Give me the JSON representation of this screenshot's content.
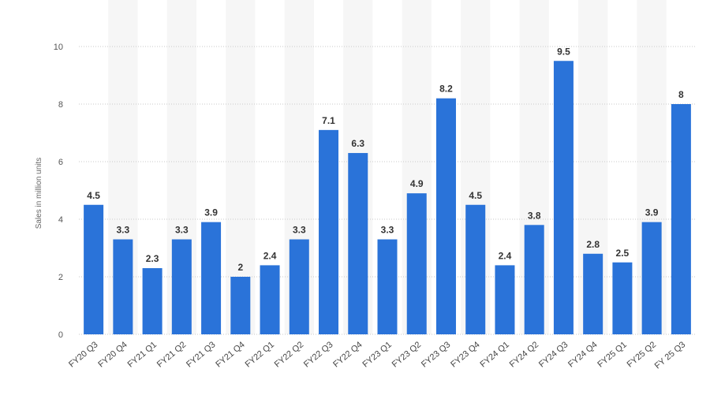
{
  "chart_data": {
    "type": "bar",
    "title": "",
    "xlabel": "",
    "ylabel": "Sales in million units",
    "ylim": [
      0,
      10
    ],
    "yticks": [
      0,
      2,
      4,
      6,
      8,
      10
    ],
    "grid": true,
    "categories": [
      "FY20 Q3",
      "FY20 Q4",
      "FY21 Q1",
      "FY21 Q2",
      "FY21 Q3",
      "FY21 Q4",
      "FY22 Q1",
      "FY22 Q2",
      "FY22 Q3",
      "FY22 Q4",
      "FY23 Q1",
      "FY23 Q2",
      "FY23 Q3",
      "FY23 Q4",
      "FY24 Q1",
      "FY24 Q2",
      "FY24 Q3",
      "FY24 Q4",
      "FY25 Q1",
      "FY25 Q2",
      "FY 25 Q3"
    ],
    "values": [
      4.5,
      3.3,
      2.3,
      3.3,
      3.9,
      2,
      2.4,
      3.3,
      7.1,
      6.3,
      3.3,
      4.9,
      8.2,
      4.5,
      2.4,
      3.8,
      9.5,
      2.8,
      2.5,
      3.9,
      8
    ],
    "colors": {
      "bar": "#2a73d9"
    }
  }
}
